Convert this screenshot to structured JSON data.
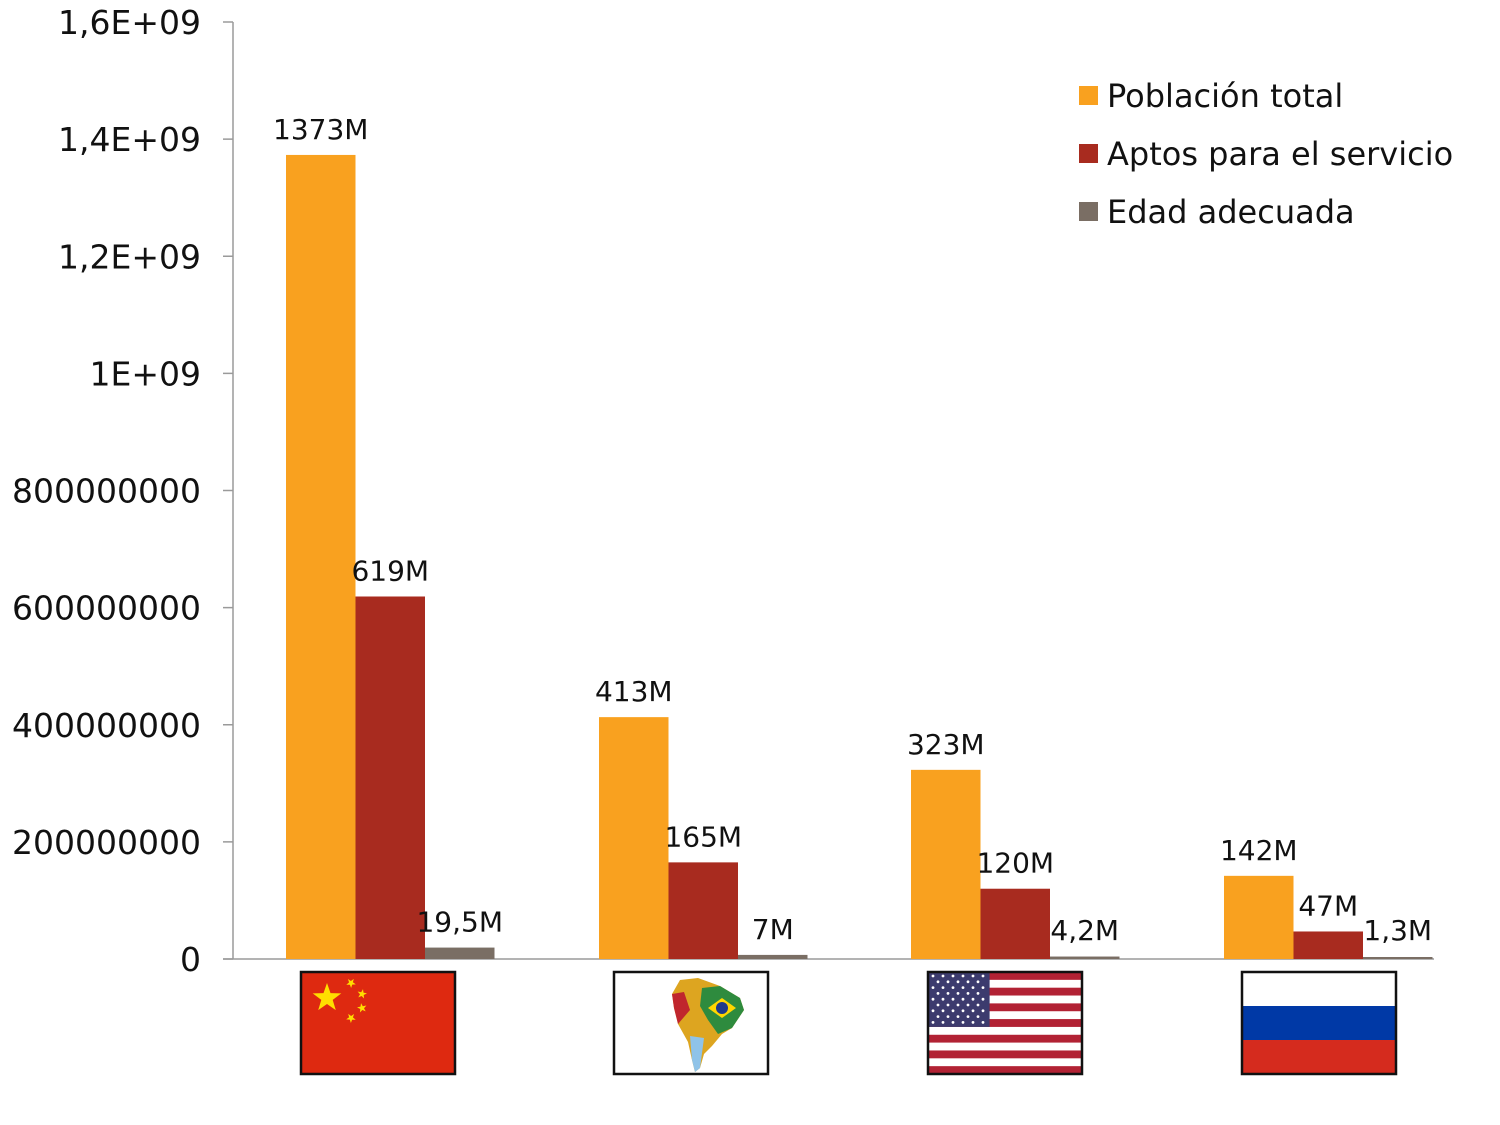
{
  "chart_data": {
    "type": "bar",
    "categories": [
      "China",
      "Sudamérica",
      "Estados Unidos",
      "Rusia"
    ],
    "category_icons": [
      "flag-china-icon",
      "map-south-america-icon",
      "flag-usa-icon",
      "flag-russia-icon"
    ],
    "series": [
      {
        "name": "Población total",
        "color": "#F9A11F",
        "values": [
          1373000000,
          413000000,
          323000000,
          142000000
        ],
        "labels": [
          "1373M",
          "413M",
          "323M",
          "142M"
        ]
      },
      {
        "name": "Aptos para el servicio",
        "color": "#A82B1F",
        "values": [
          619000000,
          165000000,
          120000000,
          47000000
        ],
        "labels": [
          "619M",
          "165M",
          "120M",
          "47M"
        ]
      },
      {
        "name": "Edad adecuada",
        "color": "#7A6E64",
        "values": [
          19500000,
          7000000,
          4200000,
          1300000
        ],
        "labels": [
          "19,5M",
          "7M",
          "4,2M",
          "1,3M"
        ]
      }
    ],
    "ylim": [
      0,
      1600000000
    ],
    "ytick_labels": [
      "0",
      "200000000",
      "400000000",
      "600000000",
      "800000000",
      "1E+09",
      "1,2E+09",
      "1,4E+09",
      "1,6E+09"
    ],
    "legend_position": "top-right",
    "grid": false,
    "title": "",
    "xlabel": "",
    "ylabel": ""
  }
}
